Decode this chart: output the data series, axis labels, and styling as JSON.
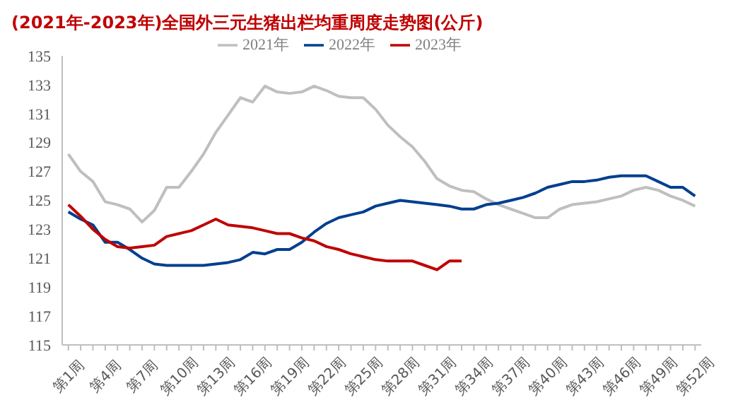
{
  "chart_data": {
    "type": "line",
    "title": "(2021年-2023年)全国外三元生猪出栏均重周度走势图(公斤)",
    "categories": [
      "第1周",
      null,
      null,
      "第4周",
      null,
      null,
      "第7周",
      null,
      null,
      "第10周",
      null,
      null,
      "第13周",
      null,
      null,
      "第16周",
      null,
      null,
      "第19周",
      null,
      null,
      "第22周",
      null,
      null,
      "第25周",
      null,
      null,
      "第28周",
      null,
      null,
      "第31周",
      null,
      null,
      "第34周",
      null,
      null,
      "第37周",
      null,
      null,
      "第40周",
      null,
      null,
      "第43周",
      null,
      null,
      "第46周",
      null,
      null,
      "第49周",
      null,
      null,
      "第52周"
    ],
    "series": [
      {
        "name": "2021年",
        "color": "#bfbfbf",
        "values": [
          128.2,
          127.0,
          126.3,
          124.9,
          124.7,
          124.4,
          123.5,
          124.3,
          125.9,
          125.9,
          127.0,
          128.2,
          129.7,
          130.9,
          132.1,
          131.8,
          132.9,
          132.5,
          132.4,
          132.5,
          132.9,
          132.6,
          132.2,
          132.1,
          132.1,
          131.3,
          130.2,
          129.4,
          128.7,
          127.7,
          126.5,
          126.0,
          125.7,
          125.6,
          125.1,
          124.7,
          124.4,
          124.1,
          123.8,
          123.8,
          124.4,
          124.7,
          124.8,
          124.9,
          125.1,
          125.3,
          125.7,
          125.9,
          125.7,
          125.3,
          125.0,
          124.6
        ]
      },
      {
        "name": "2022年",
        "color": "#003f8f",
        "values": [
          124.2,
          123.7,
          123.3,
          122.1,
          122.1,
          121.6,
          121.0,
          120.6,
          120.5,
          120.5,
          120.5,
          120.5,
          120.6,
          120.7,
          120.9,
          121.4,
          121.3,
          121.6,
          121.6,
          122.1,
          122.8,
          123.4,
          123.8,
          124.0,
          124.2,
          124.6,
          124.8,
          125.0,
          124.9,
          124.8,
          124.7,
          124.6,
          124.4,
          124.4,
          124.7,
          124.8,
          125.0,
          125.2,
          125.5,
          125.9,
          126.1,
          126.3,
          126.3,
          126.4,
          126.6,
          126.7,
          126.7,
          126.7,
          126.3,
          125.9,
          125.9,
          125.3
        ]
      },
      {
        "name": "2023年",
        "color": "#c00000",
        "values": [
          124.7,
          123.9,
          123.0,
          122.3,
          121.8,
          121.7,
          121.8,
          121.9,
          122.5,
          122.7,
          122.9,
          123.3,
          123.7,
          123.3,
          123.2,
          123.1,
          122.9,
          122.7,
          122.7,
          122.4,
          122.2,
          121.8,
          121.6,
          121.3,
          121.1,
          120.9,
          120.8,
          120.8,
          120.8,
          120.5,
          120.2,
          120.8,
          120.8,
          null,
          null,
          null,
          null,
          null,
          null,
          null,
          null,
          null,
          null,
          null,
          null,
          null,
          null,
          null,
          null,
          null,
          null,
          null
        ]
      }
    ],
    "ylim": [
      115,
      135
    ],
    "yticks": [
      115,
      117,
      119,
      121,
      123,
      125,
      127,
      129,
      131,
      133,
      135
    ],
    "grid": false,
    "legend": "top",
    "marker": "none",
    "line_style": "solid"
  }
}
